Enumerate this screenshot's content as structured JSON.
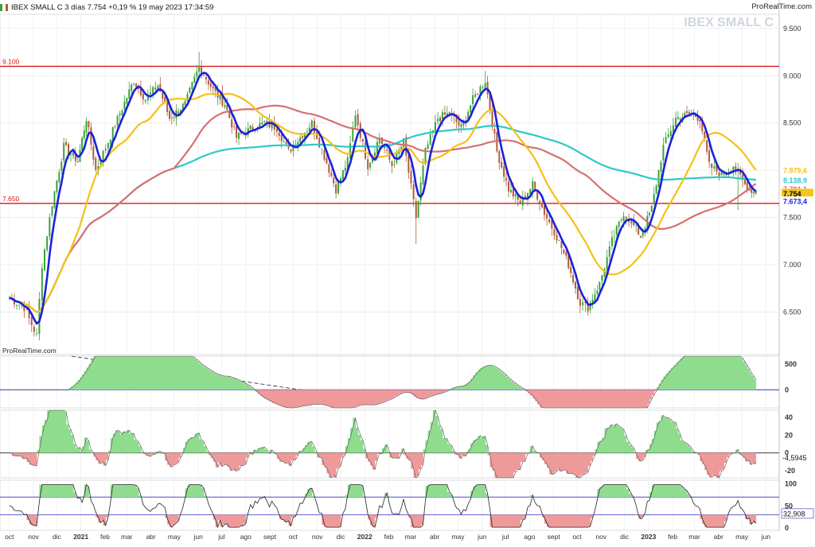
{
  "header": {
    "title": "IBEX SMALL C 3 días 7.754 +0,19 % 19 may 2023 17:34:59",
    "brand": "ProRealTime.com",
    "watermark": "IBEX SMALL C",
    "source": "ProRealTime.com"
  },
  "colors": {
    "up_candle": "#3aa23a",
    "down_candle": "#b25a3a",
    "ma_fast": "#1a22d8",
    "ma_mid": "#f5c018",
    "ma_slow": "#d87070",
    "ma_long": "#2ec8c8",
    "hline": "#d81a1a",
    "osc_pos": "#8fdc8f",
    "osc_neg": "#ef9a9a"
  },
  "chart_data": [
    {
      "type": "line",
      "panel": "price",
      "description_axis": "IBEX SMALL C daily candles, Oct 2020 - May 2023",
      "x_ticks": [
        "oct",
        "nov",
        "dic",
        "2021",
        "feb",
        "mar",
        "abr",
        "may",
        "jun",
        "jul",
        "ago",
        "sept",
        "oct",
        "nov",
        "dic",
        "2022",
        "feb",
        "mar",
        "abr",
        "may",
        "jun",
        "jul",
        "ago",
        "sept",
        "oct",
        "nov",
        "dic",
        "2023",
        "feb",
        "mar",
        "abr",
        "may",
        "jun"
      ],
      "y_ticks": [
        6.5,
        7.0,
        7.5,
        8.0,
        8.5,
        9.0,
        9.5
      ],
      "y_tick_labels": [
        "6.500",
        "7.000",
        "7.500",
        "8.000",
        "8.500",
        "9.000",
        "9.500"
      ],
      "ylim": [
        6.05,
        9.65
      ],
      "hlines": [
        {
          "value": 9.1,
          "label": "9.100"
        },
        {
          "value": 7.65,
          "label": "7.650"
        }
      ],
      "price_key": [
        [
          "2020-10-01",
          6.65
        ],
        [
          "2020-10-20",
          6.55
        ],
        [
          "2020-11-05",
          6.25
        ],
        [
          "2020-11-12",
          7.0
        ],
        [
          "2020-11-25",
          7.65
        ],
        [
          "2020-12-10",
          8.25
        ],
        [
          "2020-12-28",
          8.1
        ],
        [
          "2021-01-08",
          8.55
        ],
        [
          "2021-01-20",
          8.0
        ],
        [
          "2021-02-05",
          8.3
        ],
        [
          "2021-02-20",
          8.6
        ],
        [
          "2021-03-10",
          8.95
        ],
        [
          "2021-03-25",
          8.75
        ],
        [
          "2021-04-10",
          8.9
        ],
        [
          "2021-04-25",
          8.55
        ],
        [
          "2021-05-15",
          8.7
        ],
        [
          "2021-06-02",
          9.1
        ],
        [
          "2021-06-20",
          8.85
        ],
        [
          "2021-07-05",
          8.7
        ],
        [
          "2021-07-20",
          8.35
        ],
        [
          "2021-08-10",
          8.45
        ],
        [
          "2021-08-25",
          8.5
        ],
        [
          "2021-09-10",
          8.45
        ],
        [
          "2021-09-25",
          8.2
        ],
        [
          "2021-10-10",
          8.35
        ],
        [
          "2021-10-25",
          8.5
        ],
        [
          "2021-11-10",
          8.15
        ],
        [
          "2021-11-25",
          7.8
        ],
        [
          "2021-12-10",
          8.1
        ],
        [
          "2021-12-20",
          8.6
        ],
        [
          "2022-01-05",
          8.05
        ],
        [
          "2022-01-20",
          8.35
        ],
        [
          "2022-02-05",
          8.05
        ],
        [
          "2022-02-20",
          8.3
        ],
        [
          "2022-03-08",
          7.5
        ],
        [
          "2022-03-20",
          8.2
        ],
        [
          "2022-04-05",
          8.55
        ],
        [
          "2022-04-20",
          8.6
        ],
        [
          "2022-05-05",
          8.45
        ],
        [
          "2022-05-20",
          8.75
        ],
        [
          "2022-06-05",
          8.95
        ],
        [
          "2022-06-20",
          8.2
        ],
        [
          "2022-07-05",
          7.8
        ],
        [
          "2022-07-20",
          7.65
        ],
        [
          "2022-08-05",
          7.85
        ],
        [
          "2022-08-20",
          7.55
        ],
        [
          "2022-09-05",
          7.3
        ],
        [
          "2022-09-20",
          7.0
        ],
        [
          "2022-10-05",
          6.6
        ],
        [
          "2022-10-15",
          6.55
        ],
        [
          "2022-10-30",
          6.8
        ],
        [
          "2022-11-15",
          7.25
        ],
        [
          "2022-11-30",
          7.55
        ],
        [
          "2022-12-10",
          7.45
        ],
        [
          "2022-12-22",
          7.3
        ],
        [
          "2023-01-05",
          7.6
        ],
        [
          "2023-01-20",
          8.25
        ],
        [
          "2023-02-05",
          8.55
        ],
        [
          "2023-02-25",
          8.6
        ],
        [
          "2023-03-08",
          8.55
        ],
        [
          "2023-03-20",
          8.05
        ],
        [
          "2023-04-05",
          7.95
        ],
        [
          "2023-04-20",
          8.05
        ],
        [
          "2023-05-05",
          7.85
        ],
        [
          "2023-05-19",
          7.754
        ]
      ],
      "series": [
        {
          "name": "MA fast",
          "last": null
        },
        {
          "name": "MA mid",
          "last_label": "7.979,6"
        },
        {
          "name": "MA slow",
          "last_label": "7.791,1"
        },
        {
          "name": "MA long",
          "last_label": "8.138,9"
        },
        {
          "name": "Close",
          "last_label": "7.754"
        },
        {
          "name": "Low",
          "last_label": "7.673,4"
        }
      ]
    },
    {
      "type": "area",
      "panel": "oscillator-1",
      "y_ticks": [
        500,
        0
      ],
      "y_tick_labels": [
        "500",
        "0"
      ],
      "ylim": [
        -350,
        650
      ]
    },
    {
      "type": "area",
      "panel": "oscillator-2",
      "y_ticks": [
        40,
        20,
        0,
        -20
      ],
      "y_tick_labels": [
        "40",
        "20",
        "0",
        "-20"
      ],
      "ylim": [
        -28,
        48
      ],
      "last_label": "-4,5945"
    },
    {
      "type": "line",
      "panel": "oscillator-3",
      "y_ticks": [
        100,
        50,
        0
      ],
      "y_tick_labels": [
        "100",
        "50",
        "0"
      ],
      "ylim": [
        -5,
        108
      ],
      "bands": [
        70,
        30
      ],
      "last_label": "32,908"
    }
  ]
}
